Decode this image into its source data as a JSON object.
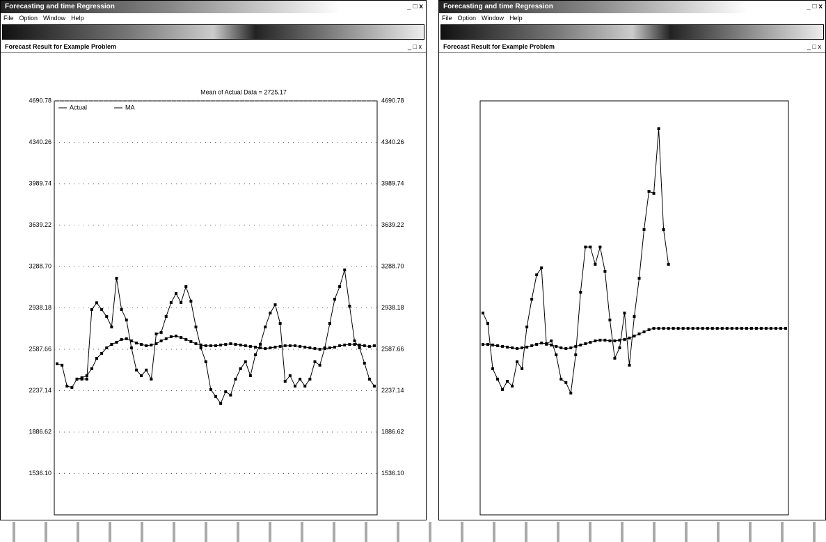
{
  "windows": [
    {
      "title": "Forecasting and time Regression",
      "menu": [
        "File",
        "Option",
        "Window",
        "Help"
      ],
      "subwindow_title": "Forecast Result for Example Problem"
    },
    {
      "title": "Forecasting and time Regression",
      "menu": [
        "File",
        "Option",
        "Window",
        "Help"
      ],
      "subwindow_title": "Forecast Result for Example Problem"
    }
  ],
  "chart_data": [
    {
      "type": "line",
      "title": "Mean of Actual Data = 2725.17",
      "ylim": [
        1185.6,
        4690.78
      ],
      "yticks": [
        4690.78,
        4340.26,
        3989.74,
        3639.22,
        {
          "value": 3288.7,
          "label": "3288.70"
        },
        2938.18,
        2587.66,
        2237.14,
        1886.62,
        {
          "value": 1536.1,
          "label": "1536.10"
        }
      ],
      "mirror_tick_labels": true,
      "grid": true,
      "legend": "upper left",
      "series": [
        {
          "name": "Actual",
          "color": "#000000",
          "values": [
            2465,
            2453,
            2276,
            2264,
            2335,
            2335,
            2335,
            2924,
            2981,
            2924,
            2865,
            2777,
            3189,
            2924,
            2836,
            2600,
            2412,
            2364,
            2412,
            2335,
            2718,
            2730,
            2865,
            2983,
            3059,
            2983,
            3118,
            2995,
            2777,
            2600,
            2482,
            2247,
            2188,
            2129,
            2229,
            2200,
            2335,
            2423,
            2482,
            2364,
            2541,
            2630,
            2777,
            2895,
            2965,
            2806,
            2317,
            2364,
            2276,
            2335,
            2276,
            2335,
            2482,
            2453,
            2600,
            2806,
            3012,
            3118,
            3260,
            2953,
            2659,
            2600,
            2470,
            2335,
            2276
          ]
        },
        {
          "name": "MA",
          "color": "#000000",
          "values": [
            null,
            null,
            null,
            null,
            2335,
            2347,
            2364,
            2423,
            2511,
            2553,
            2600,
            2629,
            2647,
            2671,
            2677,
            2659,
            2641,
            2629,
            2618,
            2624,
            2635,
            2659,
            2677,
            2694,
            2700,
            2688,
            2671,
            2653,
            2635,
            2624,
            2618,
            2618,
            2618,
            2624,
            2629,
            2635,
            2629,
            2624,
            2618,
            2612,
            2606,
            2600,
            2594,
            2600,
            2606,
            2612,
            2618,
            2618,
            2618,
            2612,
            2606,
            2600,
            2594,
            2588,
            2594,
            2600,
            2606,
            2618,
            2624,
            2629,
            2629,
            2624,
            2618,
            2612,
            2618
          ]
        }
      ]
    },
    {
      "type": "line",
      "ylim": [
        1185.6,
        4690.78
      ],
      "series": [
        {
          "color": "#000000",
          "values": [
            2895,
            2806,
            2423,
            2335,
            2247,
            2317,
            2276,
            2482,
            2423,
            2777,
            3012,
            3218,
            3277,
            2630,
            2659,
            2541,
            2335,
            2306,
            2217,
            2541,
            3071,
            3454,
            3454,
            3307,
            3454,
            3248,
            2836,
            2512,
            2600,
            2895,
            2453,
            2865,
            3189,
            3601,
            3925,
            3908,
            4455,
            3601,
            3307,
            null,
            null,
            null,
            null,
            null,
            null,
            null,
            null,
            null,
            null,
            null,
            null,
            null,
            null,
            null,
            null,
            null,
            null,
            null,
            null,
            null,
            null,
            null,
            null
          ]
        },
        {
          "color": "#000000",
          "values": [
            2629,
            2629,
            2624,
            2618,
            2612,
            2606,
            2600,
            2594,
            2600,
            2606,
            2618,
            2629,
            2641,
            2635,
            2624,
            2612,
            2600,
            2594,
            2600,
            2612,
            2624,
            2635,
            2647,
            2659,
            2665,
            2665,
            2659,
            2659,
            2665,
            2671,
            2683,
            2700,
            2718,
            2735,
            2753,
            2765,
            2765,
            2765,
            2765,
            2765,
            2765,
            2765,
            2765,
            2765,
            2765,
            2765,
            2765,
            2765,
            2765,
            2765,
            2765,
            2765,
            2765,
            2765,
            2765,
            2765,
            2765,
            2765,
            2765,
            2765,
            2765,
            2765,
            2765
          ]
        }
      ]
    }
  ]
}
